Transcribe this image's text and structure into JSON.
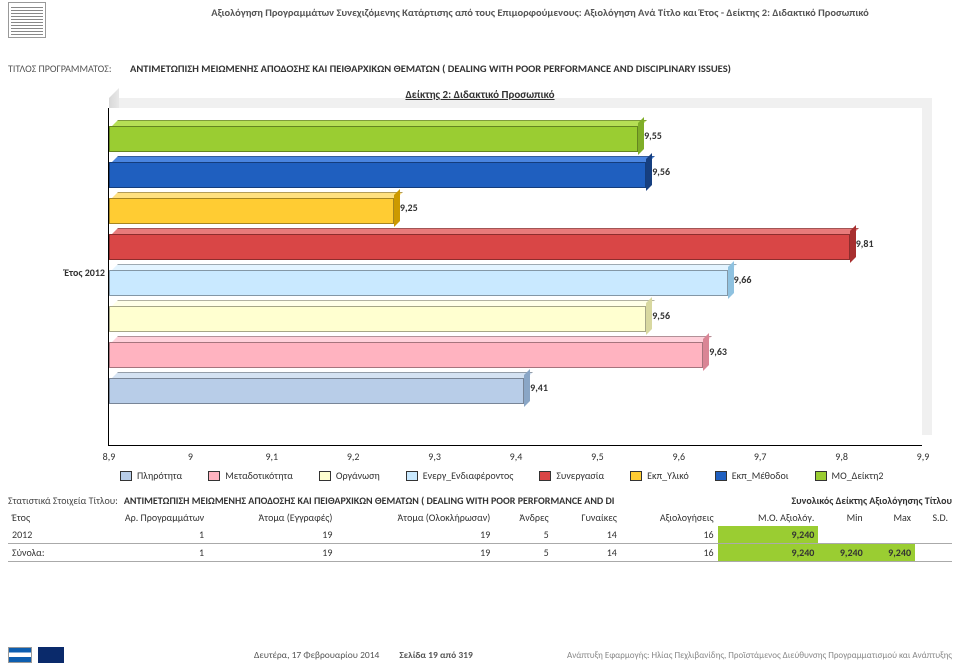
{
  "header": {
    "page_title": "Αξιολόγηση Προγραμμάτων Συνεχιζόμενης Κατάρτισης από τους Επιμορφούμενους: Αξιολόγηση Ανά Τίτλο και Έτος - Δείκτης 2: Διδακτικό Προσωπικό",
    "prog_label": "ΤΙΤΛΟΣ ΠΡΟΓΡΑΜΜΑΤΟΣ:",
    "prog_value": "ΑΝΤΙΜΕΤΩΠΙΣΗ ΜΕΙΩΜΕΝΗΣ  ΑΠΟΔΟΣΗΣ ΚΑΙ ΠΕΙΘΑΡΧΙΚΩΝ ΘΕΜΑΤΩΝ ( DEALING WITH POOR PERFORMANCE AND DISCIPLINARY ISSUES)"
  },
  "chart": {
    "title": "Δείκτης 2: Διδακτικό Προσωπικό",
    "y_category": "Έτος 2012",
    "xmin": 8.9,
    "xmax": 9.9,
    "xticks": [
      "8,9",
      "9",
      "9,1",
      "9,2",
      "9,3",
      "9,4",
      "9,5",
      "9,6",
      "9,7",
      "9,8",
      "9,9"
    ],
    "series": [
      {
        "name": "ΜΟ_Δείκτη2",
        "value": 9.55,
        "label": "9,55",
        "color": "#9acd32",
        "top": "#b6df55",
        "end": "#7fae28"
      },
      {
        "name": "Εκπ_Μέθοδοι",
        "value": 9.56,
        "label": "9,56",
        "color": "#1f5fbf",
        "top": "#4a85e0",
        "end": "#163f80"
      },
      {
        "name": "Εκπ_Υλικό",
        "value": 9.25,
        "label": "9,25",
        "color": "#ffcc33",
        "top": "#ffe080",
        "end": "#cc9900"
      },
      {
        "name": "Συνεργασία",
        "value": 9.81,
        "label": "9,81",
        "color": "#d94646",
        "top": "#e87a7a",
        "end": "#a82f2f"
      },
      {
        "name": "Ενεργ_Ενδιαφέροντος",
        "value": 9.66,
        "label": "9,66",
        "color": "#c9e9ff",
        "top": "#e3f4ff",
        "end": "#8fc2e0"
      },
      {
        "name": "Οργάνωση",
        "value": 9.56,
        "label": "9,56",
        "color": "#ffffd0",
        "top": "#ffffe8",
        "end": "#d8d8a0"
      },
      {
        "name": "Μεταδοτικότητα",
        "value": 9.63,
        "label": "9,63",
        "color": "#ffb3c0",
        "top": "#ffd0da",
        "end": "#d98595"
      },
      {
        "name": "Πληρότητα",
        "value": 9.41,
        "label": "9,41",
        "color": "#b8cde8",
        "top": "#d4e2f2",
        "end": "#8aa6c6"
      }
    ],
    "legend": [
      {
        "label": "Πληρότητα",
        "color": "#b8cde8"
      },
      {
        "label": "Μεταδοτικότητα",
        "color": "#ffb3c0"
      },
      {
        "label": "Οργάνωση",
        "color": "#ffffd0"
      },
      {
        "label": "Ενεργ_Ενδιαφέροντος",
        "color": "#c9e9ff"
      },
      {
        "label": "Συνεργασία",
        "color": "#d94646"
      },
      {
        "label": "Εκπ_Υλικό",
        "color": "#ffcc33"
      },
      {
        "label": "Εκπ_Μέθοδοι",
        "color": "#1f5fbf"
      },
      {
        "label": "ΜΟ_Δείκτη2",
        "color": "#9acd32"
      }
    ]
  },
  "stats": {
    "block_label": "Στατιστικά Στοιχεία Τίτλου:",
    "block_title": "ΑΝΤΙΜΕΤΩΠΙΣΗ ΜΕΙΩΜΕΝΗΣ  ΑΠΟΔΟΣΗΣ ΚΑΙ ΠΕΙΘΑΡΧΙΚΩΝ ΘΕΜΑΤΩΝ ( DEALING WITH POOR PERFORMANCE AND DI",
    "total_title": "Συνολικός Δείκτης Αξιολόγησης Τίτλου",
    "columns": [
      "Έτος",
      "Αρ. Προγραμμάτων",
      "Άτομα (Εγγραφές)",
      "Άτομα (Ολοκλήρωσαν)",
      "Άνδρες",
      "Γυναίκες",
      "Αξιολογήσεις",
      "Μ.Ο. Αξιολόγ.",
      "Min",
      "Max",
      "S.D."
    ],
    "row": {
      "year": "2012",
      "progs": "1",
      "enroll": "19",
      "complete": "19",
      "men": "5",
      "women": "14",
      "evals": "16",
      "mo": "9,240"
    },
    "sum_label": "Σύνολα:",
    "sum": {
      "progs": "1",
      "enroll": "19",
      "complete": "19",
      "men": "5",
      "women": "14",
      "evals": "16",
      "mo": "9,240",
      "min": "9,240",
      "max": "9,240"
    }
  },
  "footer": {
    "date": "Δευτέρα, 17 Φεβρουαρίου 2014",
    "page": "Σελίδα 19 από 319",
    "credit": "Ανάπτυξη Εφαρμογής: Ηλίας Πεχλιβανίδης, Προϊστάμενος Διεύθυνσης Προγραμματισμού και Ανάπτυξης"
  }
}
